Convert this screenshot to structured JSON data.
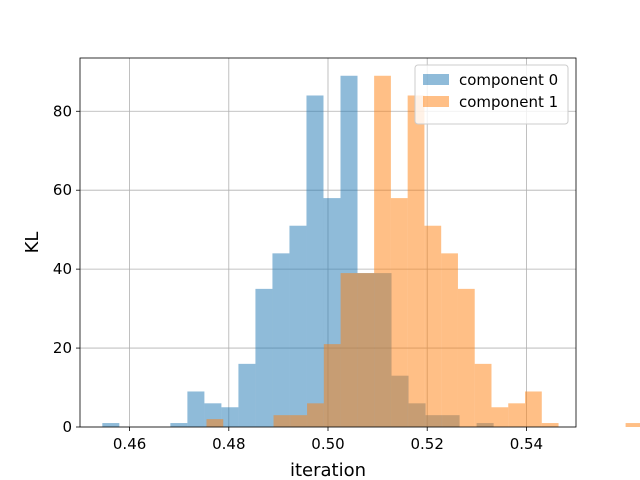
{
  "chart_data": {
    "type": "histogram",
    "title": "",
    "xlabel": "iteration",
    "ylabel": "KL",
    "xlim": [
      0.45,
      0.55
    ],
    "ylim": [
      0,
      93.5
    ],
    "xticks": [
      0.46,
      0.48,
      0.5,
      0.52,
      0.54
    ],
    "xtick_labels": [
      "0.46",
      "0.48",
      "0.50",
      "0.52",
      "0.54"
    ],
    "yticks": [
      0,
      20,
      40,
      60,
      80
    ],
    "ytick_labels": [
      "0",
      "20",
      "40",
      "60",
      "80"
    ],
    "grid": true,
    "legend_position": "upper right",
    "series": [
      {
        "name": "component 0",
        "color": "#1f77b4",
        "opacity": 0.5,
        "bin_start": 0.4545,
        "bin_width": 0.00343,
        "counts": [
          1,
          0,
          0,
          0,
          1,
          9,
          6,
          5,
          16,
          35,
          44,
          51,
          84,
          58,
          89,
          39,
          39,
          13,
          6,
          3,
          3,
          0,
          1
        ]
      },
      {
        "name": "component 1",
        "color": "#ff7f0e",
        "opacity": 0.5,
        "bin_start": 0.4755,
        "bin_width": 0.00338,
        "counts": [
          2,
          0,
          0,
          0,
          3,
          3,
          6,
          21,
          39,
          39,
          89,
          58,
          84,
          51,
          44,
          35,
          16,
          5,
          6,
          9,
          1,
          0,
          0,
          0,
          0,
          1
        ]
      }
    ]
  }
}
